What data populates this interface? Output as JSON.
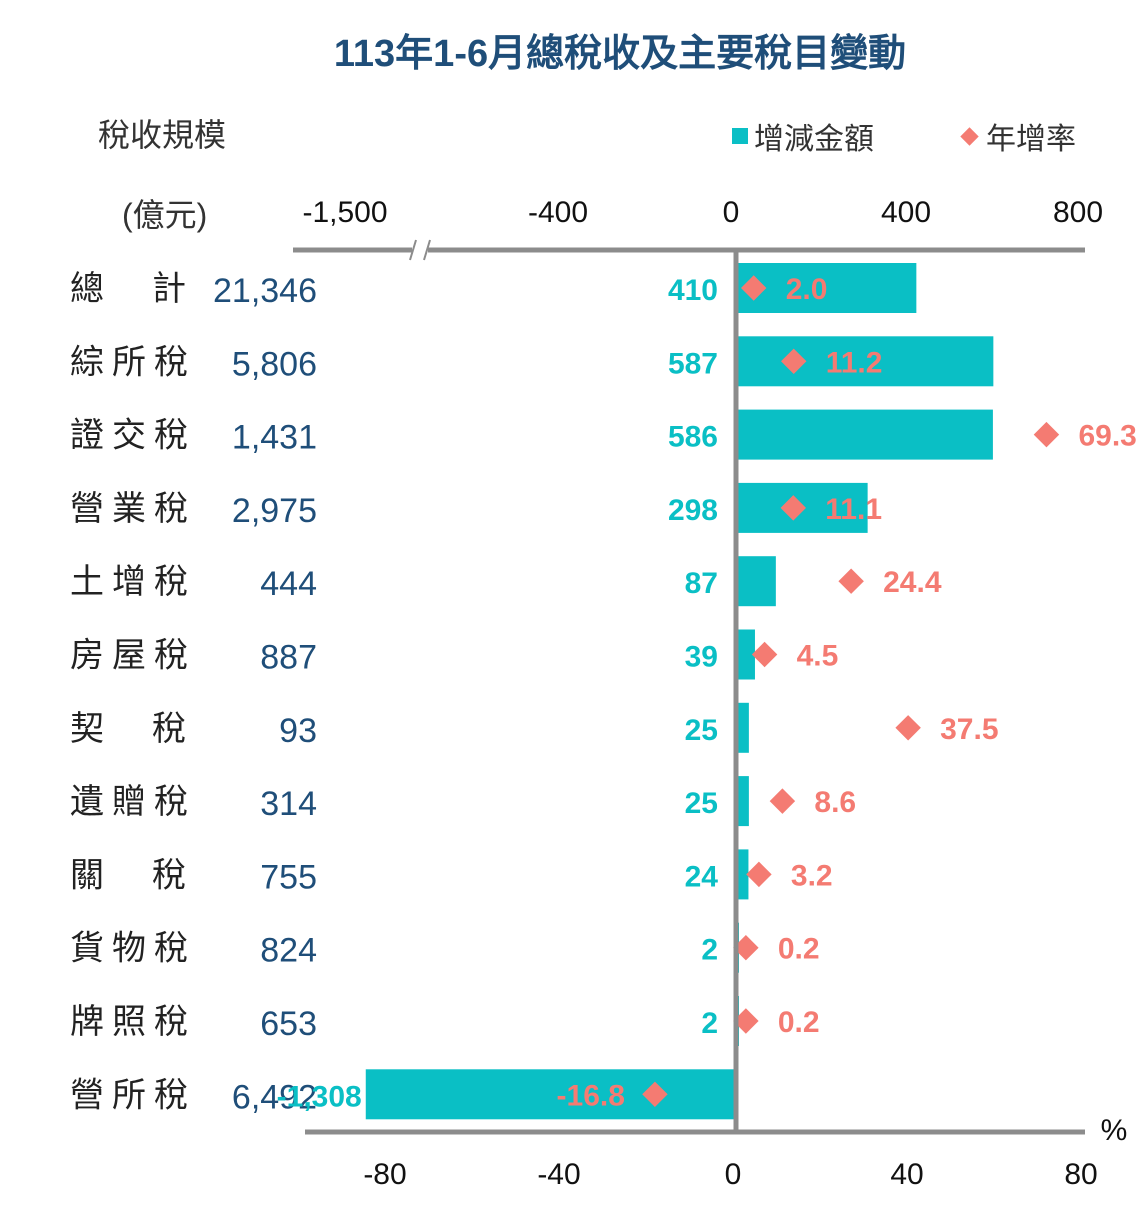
{
  "chart_data": {
    "type": "bar",
    "title": "113年1-6月總稅收及主要稅目變動",
    "ylabel_line1": "稅收規模",
    "ylabel_line2": "(億元)",
    "legend": [
      {
        "name": "增減金額",
        "marker": "square",
        "color": "#0abfc5"
      },
      {
        "name": "年增率",
        "marker": "diamond",
        "color": "#f47b72"
      }
    ],
    "legend_position": "top-right",
    "top_axis": {
      "label": "增減金額(億元)",
      "ticks": [
        "-1,500",
        "-400",
        "0",
        "400",
        "800"
      ],
      "tick_values": [
        -1500,
        -400,
        0,
        400,
        800
      ],
      "axis_break": true,
      "range": [
        -1500,
        800
      ]
    },
    "bottom_axis": {
      "unit": "%",
      "ticks": [
        "-80",
        "-40",
        "0",
        "40",
        "80"
      ],
      "tick_values": [
        -80,
        -40,
        0,
        40,
        80
      ],
      "range": [
        -80,
        80
      ]
    },
    "categories": [
      "總　計",
      "綜所稅",
      "證交稅",
      "營業稅",
      "土增稅",
      "房屋稅",
      "契　稅",
      "遺贈稅",
      "關　稅",
      "貨物稅",
      "牌照稅",
      "營所稅"
    ],
    "tax_scale": [
      "21,346",
      "5,806",
      "1,431",
      "2,975",
      "444",
      "887",
      "93",
      "314",
      "755",
      "824",
      "653",
      "6,492"
    ],
    "series": [
      {
        "name": "增減金額",
        "type": "bar",
        "values": [
          410,
          587,
          586,
          298,
          87,
          39,
          25,
          25,
          24,
          2,
          2,
          -1308
        ],
        "labels": [
          "410",
          "587",
          "586",
          "298",
          "87",
          "39",
          "25",
          "25",
          "24",
          "2",
          "2",
          "-1,308"
        ]
      },
      {
        "name": "年增率",
        "type": "scatter",
        "values": [
          2.0,
          11.2,
          69.3,
          11.1,
          24.4,
          4.5,
          37.5,
          8.6,
          3.2,
          0.2,
          0.2,
          -16.8
        ],
        "labels": [
          "2.0",
          "11.2",
          "69.3",
          "11.1",
          "24.4",
          "4.5",
          "37.5",
          "8.6",
          "3.2",
          "0.2",
          "0.2",
          "-16.8"
        ]
      }
    ]
  }
}
